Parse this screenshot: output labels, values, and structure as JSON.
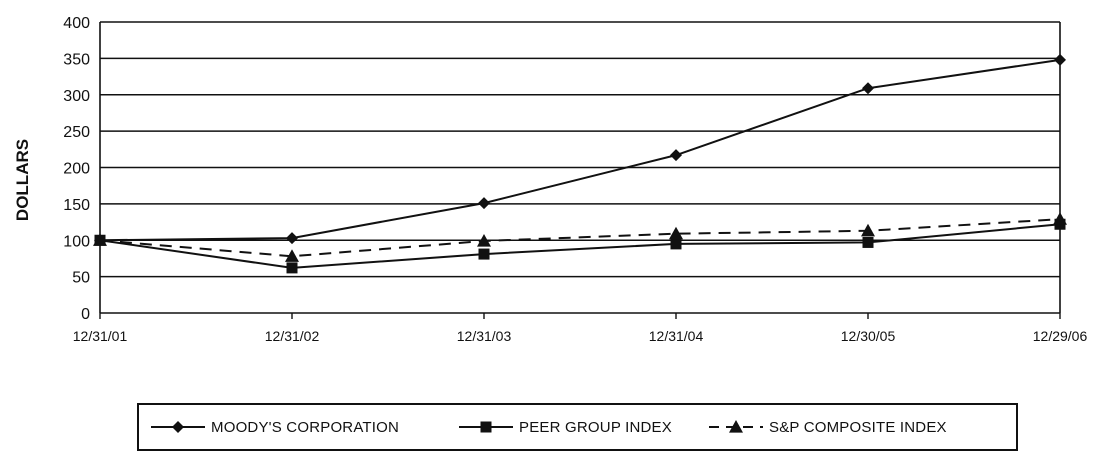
{
  "chart_data": {
    "type": "line",
    "ylabel": "DOLLARS",
    "xlabel": "",
    "categories": [
      "12/31/01",
      "12/31/02",
      "12/31/03",
      "12/31/04",
      "12/30/05",
      "12/29/06"
    ],
    "yticks": [
      "0",
      "50",
      "100",
      "150",
      "200",
      "250",
      "300",
      "350",
      "400"
    ],
    "ylim": [
      0,
      400
    ],
    "grid": "horizontal",
    "legend_position": "bottom",
    "series": [
      {
        "name": "MOODY'S CORPORATION",
        "marker": "diamond",
        "dash": "solid",
        "color": "#111111",
        "values": [
          100,
          103,
          151,
          217,
          309,
          348
        ]
      },
      {
        "name": "PEER GROUP INDEX",
        "marker": "square",
        "dash": "solid",
        "color": "#111111",
        "values": [
          100,
          62,
          81,
          95,
          97,
          122
        ]
      },
      {
        "name": "S&P COMPOSITE INDEX",
        "marker": "triangle",
        "dash": "dashed",
        "color": "#111111",
        "values": [
          100,
          78,
          99,
          109,
          113,
          129
        ]
      }
    ]
  }
}
